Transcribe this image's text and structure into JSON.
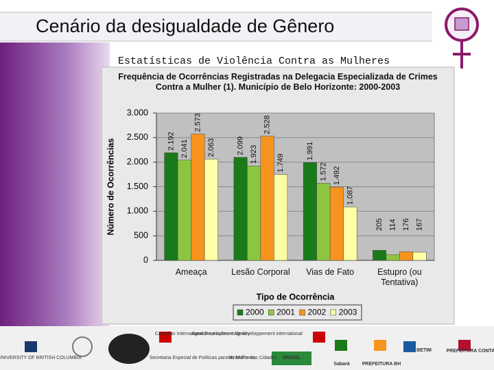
{
  "slide": {
    "title": "Cenário da desigualdade de Gênero",
    "subtitle": "Estatísticas de Violência Contra as Mulheres"
  },
  "footer": {
    "logos": [
      "THE UNIVERSITY OF BRITISH COLUMBIA",
      "Canadian International Development Agency",
      "Agence canadienne de développement international",
      "Secretaria Especial de Políticas para as Mulheres",
      "Ministério das Cidades",
      "BRASIL",
      "Sabará",
      "PREFEITURA BH",
      "BETIM",
      "PREFEITURA CONTAGEM"
    ]
  },
  "chart_data": {
    "type": "bar",
    "title": "Frequência de Ocorrências Registradas na Delegacia Especializada de Crimes Contra a Mulher (1). Município de Belo Horizonte: 2000-2003",
    "x_label": "Tipo de Ocorrência",
    "y_label": "Número de Ocorrências",
    "categories": [
      "Ameaça",
      "Lesão Corporal",
      "Vias de Fato",
      "Estupro (ou Tentativa)"
    ],
    "series": [
      {
        "name": "2000",
        "color": "#1a7a1a",
        "values": [
          2192,
          2099,
          1991,
          205
        ],
        "value_labels": [
          "2.192",
          "2.099",
          "1.991",
          "205"
        ]
      },
      {
        "name": "2001",
        "color": "#8cc63f",
        "values": [
          2041,
          1923,
          1572,
          114
        ],
        "value_labels": [
          "2.041",
          "1.923",
          "1.572",
          "114"
        ]
      },
      {
        "name": "2002",
        "color": "#f7941d",
        "values": [
          2573,
          2528,
          1492,
          176
        ],
        "value_labels": [
          "2.573",
          "2.528",
          "1.492",
          "176"
        ]
      },
      {
        "name": "2003",
        "color": "#ffffa6",
        "values": [
          2063,
          1749,
          1087,
          167
        ],
        "value_labels": [
          "2.063",
          "1.749",
          "1.087",
          "167"
        ]
      }
    ],
    "ylim": [
      0,
      3000
    ],
    "yticks": [
      0,
      500,
      {
        "value": 1000,
        "label": "1.000"
      },
      {
        "value": 1500,
        "label": "1.500"
      },
      {
        "value": 2000,
        "label": "2.000"
      },
      {
        "value": 2500,
        "label": "2.500"
      },
      {
        "value": 3000,
        "label": "3.000"
      }
    ],
    "grid": true,
    "legend": "bottom"
  }
}
